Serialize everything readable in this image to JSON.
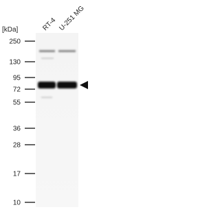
{
  "unit_label": "[kDa]",
  "lanes": [
    "RT-4",
    "U-251 MG"
  ],
  "markers": [
    "250",
    "130",
    "95",
    "72",
    "55",
    "36",
    "28",
    "17",
    "10"
  ]
}
